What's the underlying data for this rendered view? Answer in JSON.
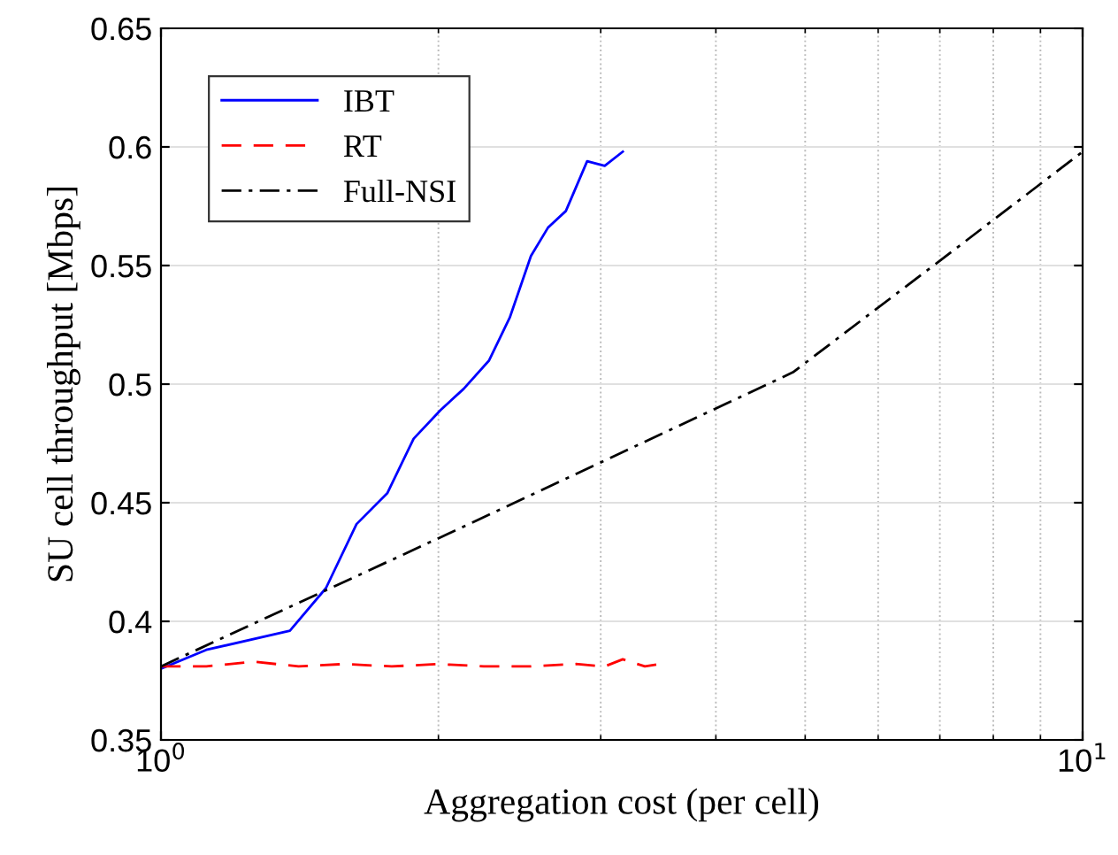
{
  "chart_data": {
    "type": "line",
    "xlabel": "Aggregation cost (per cell)",
    "ylabel": "SU cell throughput [Mbps]",
    "log": "x",
    "xlim": [
      1,
      10
    ],
    "xticks": [
      {
        "value": 1,
        "label": "10$^{0}$"
      },
      {
        "value": 10,
        "label": "10$^{1}$"
      }
    ],
    "ylim": [
      0.35,
      0.65
    ],
    "yticks": [
      0.35,
      0.4,
      0.45,
      0.5,
      0.55,
      0.6,
      0.65
    ],
    "grid": true,
    "legend": "top left",
    "marker": "none",
    "series": [
      {
        "name": "IBT",
        "color": "#0000ff",
        "line_style": "solid",
        "x": [
          1.0,
          1.12,
          1.38,
          1.51,
          1.63,
          1.76,
          1.88,
          2.01,
          2.13,
          2.27,
          2.39,
          2.52,
          2.63,
          2.75,
          2.9,
          3.03,
          3.17
        ],
        "values": [
          0.38,
          0.388,
          0.396,
          0.414,
          0.441,
          0.454,
          0.477,
          0.489,
          0.498,
          0.51,
          0.528,
          0.554,
          0.566,
          0.573,
          0.594,
          0.592,
          0.598
        ]
      },
      {
        "name": "RT",
        "color": "#ff0000",
        "line_style": "dashed",
        "x": [
          1.0,
          1.12,
          1.26,
          1.41,
          1.58,
          1.78,
          2.0,
          2.24,
          2.51,
          2.82,
          3.03,
          3.17,
          3.35,
          3.48
        ],
        "values": [
          0.381,
          0.381,
          0.383,
          0.381,
          0.382,
          0.381,
          0.382,
          0.381,
          0.381,
          0.382,
          0.381,
          0.384,
          0.381,
          0.382
        ]
      },
      {
        "name": "Full-NSI",
        "color": "#000000",
        "line_style": "dashdot",
        "x": [
          1.0,
          2.0,
          3.0,
          4.85,
          7.0,
          10.0
        ],
        "values": [
          0.381,
          0.435,
          0.467,
          0.505,
          0.552,
          0.598
        ]
      }
    ]
  }
}
